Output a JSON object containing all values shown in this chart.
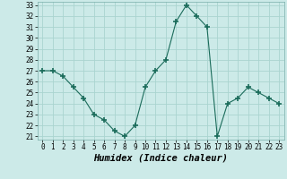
{
  "xlabel": "Humidex (Indice chaleur)",
  "x": [
    0,
    1,
    2,
    3,
    4,
    5,
    6,
    7,
    8,
    9,
    10,
    11,
    12,
    13,
    14,
    15,
    16,
    17,
    18,
    19,
    20,
    21,
    22,
    23
  ],
  "y": [
    27,
    27,
    26.5,
    25.5,
    24.5,
    23,
    22.5,
    21.5,
    21,
    22,
    25.5,
    27,
    28,
    31.5,
    33,
    32,
    31,
    21,
    24,
    24.5,
    25.5,
    25,
    24.5,
    24
  ],
  "line_color": "#1a6b5a",
  "marker": "+",
  "marker_size": 4.0,
  "bg_color": "#cceae8",
  "grid_color": "#aad4d0",
  "ylim": [
    21,
    33
  ],
  "xlim": [
    -0.5,
    23.5
  ],
  "yticks": [
    21,
    22,
    23,
    24,
    25,
    26,
    27,
    28,
    29,
    30,
    31,
    32,
    33
  ],
  "xticks": [
    0,
    1,
    2,
    3,
    4,
    5,
    6,
    7,
    8,
    9,
    10,
    11,
    12,
    13,
    14,
    15,
    16,
    17,
    18,
    19,
    20,
    21,
    22,
    23
  ],
  "tick_fontsize": 5.5,
  "label_fontsize": 7.5
}
